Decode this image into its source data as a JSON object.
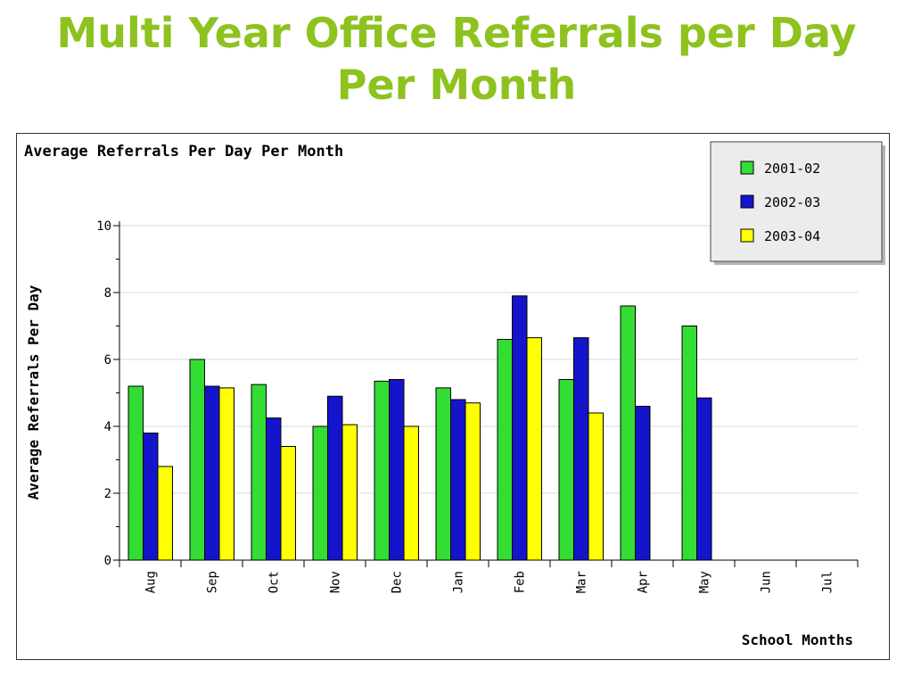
{
  "slide": {
    "title_line1": "Multi Year Office Referrals per Day",
    "title_line2": "Per Month"
  },
  "colors": {
    "title": "#8dc21f",
    "series": [
      "#33dd33",
      "#1414cc",
      "#ffff00"
    ]
  },
  "chart_data": {
    "type": "bar",
    "title": "Average Referrals Per Day Per Month",
    "xlabel": "School Months",
    "ylabel": "Average Referrals Per Day",
    "ylim": [
      0,
      10
    ],
    "yticks": [
      0,
      2,
      4,
      6,
      8,
      10
    ],
    "grid": true,
    "legend_position": "top-right",
    "categories": [
      "Aug",
      "Sep",
      "Oct",
      "Nov",
      "Dec",
      "Jan",
      "Feb",
      "Mar",
      "Apr",
      "May",
      "Jun",
      "Jul"
    ],
    "series": [
      {
        "name": "2001-02",
        "values": [
          5.2,
          6.0,
          5.25,
          4.0,
          5.35,
          5.15,
          6.6,
          5.4,
          7.6,
          7.0,
          null,
          null
        ]
      },
      {
        "name": "2002-03",
        "values": [
          3.8,
          5.2,
          4.25,
          4.9,
          5.4,
          4.8,
          7.9,
          6.65,
          4.6,
          4.85,
          null,
          null
        ]
      },
      {
        "name": "2003-04",
        "values": [
          2.8,
          5.15,
          3.4,
          4.05,
          4.0,
          4.7,
          6.65,
          4.4,
          null,
          null,
          null,
          null
        ]
      }
    ]
  }
}
